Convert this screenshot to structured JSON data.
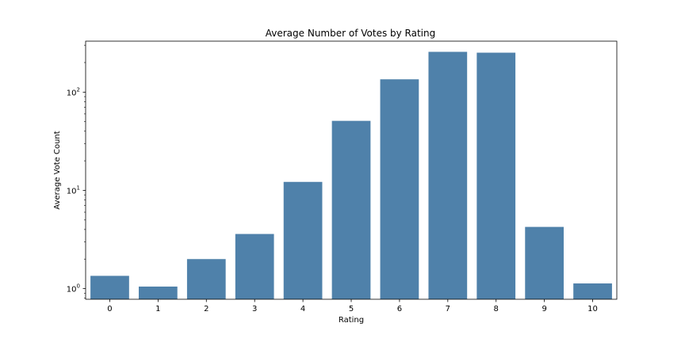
{
  "chart_data": {
    "type": "bar",
    "title": "Average Number of Votes by Rating",
    "xlabel": "Rating",
    "ylabel": "Average Vote Count",
    "yscale": "log",
    "ylim": [
      0.78,
      330
    ],
    "categories": [
      "0",
      "1",
      "2",
      "3",
      "4",
      "5",
      "6",
      "7",
      "8",
      "9",
      "10"
    ],
    "values": [
      1.35,
      1.05,
      2.0,
      3.6,
      12.2,
      51,
      135,
      257,
      252,
      4.25,
      1.13
    ],
    "yticks": [
      {
        "value": 1,
        "base": "10",
        "exp": "0"
      },
      {
        "value": 10,
        "base": "10",
        "exp": "1"
      },
      {
        "value": 100,
        "base": "10",
        "exp": "2"
      }
    ],
    "grid": false,
    "bar_color": "#4f81aa"
  }
}
